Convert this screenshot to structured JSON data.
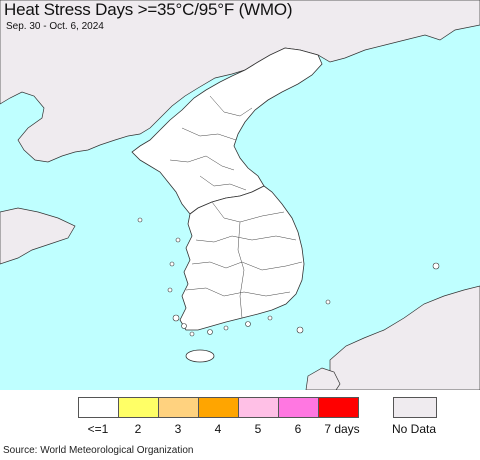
{
  "title": "Heat Stress Days >=35°C/95°F (WMO)",
  "subtitle": "Sep. 30 - Oct. 6, 2024",
  "colors": {
    "ocean": "#bfffff",
    "land_data": "#ffffff",
    "land_nodata": "#efebef",
    "border": "#333333"
  },
  "legend": {
    "items": [
      {
        "label": "<=1",
        "color": "#ffffff"
      },
      {
        "label": "2",
        "color": "#ffff66"
      },
      {
        "label": "3",
        "color": "#ffd27f"
      },
      {
        "label": "4",
        "color": "#ffa500"
      },
      {
        "label": "5",
        "color": "#ffc0e6"
      },
      {
        "label": "6",
        "color": "#ff77e1"
      },
      {
        "label": "7 days",
        "color": "#ff0000"
      }
    ],
    "nodata": {
      "label": "No Data",
      "color": "#efebef"
    }
  },
  "source": "Source: World Meteorological Organization"
}
